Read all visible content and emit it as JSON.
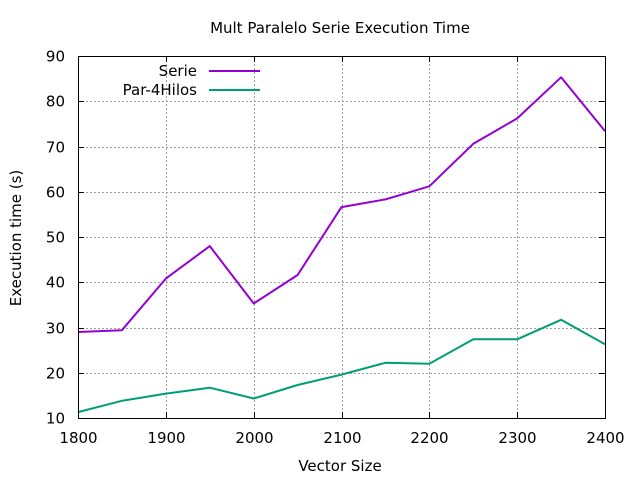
{
  "chart_data": {
    "type": "line",
    "title": "Mult Paralelo Serie Execution Time",
    "xlabel": "Vector Size",
    "ylabel": "Execution time (s)",
    "xlim": [
      1800,
      2400
    ],
    "ylim": [
      10,
      90
    ],
    "xticks": [
      1800,
      1900,
      2000,
      2100,
      2200,
      2300,
      2400
    ],
    "yticks": [
      10,
      20,
      30,
      40,
      50,
      60,
      70,
      80,
      90
    ],
    "grid": true,
    "legend_position": "top-left",
    "x": [
      1800,
      1850,
      1900,
      1950,
      2000,
      2050,
      2100,
      2150,
      2200,
      2250,
      2300,
      2350,
      2400
    ],
    "series": [
      {
        "name": "Serie",
        "color": "#9400d3",
        "values": [
          29.0,
          29.4,
          40.8,
          48.0,
          35.3,
          41.6,
          56.6,
          58.3,
          61.2,
          70.6,
          76.2,
          85.3,
          73.4
        ]
      },
      {
        "name": "Par-4Hilos",
        "color": "#009e73",
        "values": [
          11.3,
          13.8,
          15.4,
          16.7,
          14.3,
          17.3,
          19.6,
          22.2,
          22.0,
          27.4,
          27.4,
          31.7,
          26.3
        ]
      }
    ]
  }
}
